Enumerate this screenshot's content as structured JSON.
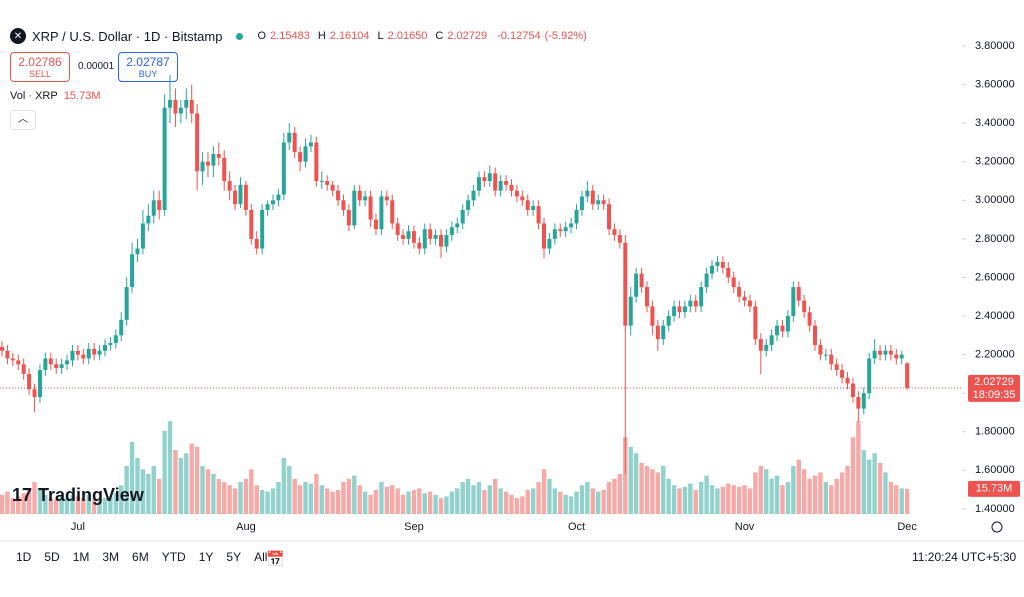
{
  "header": {
    "symbol": "XRP / U.S. Dollar · 1D · Bitstamp",
    "ohlc": [
      {
        "key": "O",
        "value": "2.15483"
      },
      {
        "key": "H",
        "value": "2.16104"
      },
      {
        "key": "L",
        "value": "2.01650"
      },
      {
        "key": "C",
        "value": "2.02729"
      }
    ],
    "change": "-0.12754",
    "change_pct": "(-5.92%)"
  },
  "trade": {
    "sell_price": "2.02786",
    "sell": "SELL",
    "spread": "0.00001",
    "buy_price": "2.02787",
    "buy": "BUY"
  },
  "volume_legend": {
    "label": "Vol · XRP",
    "value": "15.73M"
  },
  "logo": "TradingView",
  "toolbar": {
    "ranges": [
      "1D",
      "5D",
      "1M",
      "3M",
      "6M",
      "YTD",
      "1Y",
      "5Y",
      "All"
    ],
    "time": "11:20:24 UTC+5:30"
  },
  "chart_data": {
    "type": "candlestick",
    "up_color": "#26a69a",
    "down_color": "#ef5350",
    "grid": false,
    "categories": [
      null,
      null,
      null,
      null,
      null,
      null,
      null,
      null,
      null,
      null,
      null,
      null,
      null,
      null,
      "Jul",
      null,
      null,
      null,
      null,
      null,
      null,
      null,
      null,
      null,
      null,
      null,
      null,
      null,
      null,
      null,
      null,
      null,
      null,
      null,
      null,
      null,
      null,
      null,
      null,
      null,
      null,
      null,
      null,
      null,
      null,
      "Aug",
      null,
      null,
      null,
      null,
      null,
      null,
      null,
      null,
      null,
      null,
      null,
      null,
      null,
      null,
      null,
      null,
      null,
      null,
      null,
      null,
      null,
      null,
      null,
      null,
      null,
      null,
      null,
      null,
      null,
      null,
      "Sep",
      null,
      null,
      null,
      null,
      null,
      null,
      null,
      null,
      null,
      null,
      null,
      null,
      null,
      null,
      null,
      null,
      null,
      null,
      null,
      null,
      null,
      null,
      null,
      null,
      null,
      null,
      null,
      null,
      null,
      "Oct",
      null,
      null,
      null,
      null,
      null,
      null,
      null,
      null,
      null,
      null,
      null,
      null,
      null,
      null,
      null,
      null,
      null,
      null,
      null,
      null,
      null,
      null,
      null,
      null,
      null,
      null,
      null,
      null,
      null,
      null,
      "Nov",
      null,
      null,
      null,
      null,
      null,
      null,
      null,
      null,
      null,
      null,
      null,
      null,
      null,
      null,
      null,
      null,
      null,
      null,
      null,
      null,
      null,
      null,
      null,
      null,
      null,
      null,
      null,
      null,
      null,
      "Dec"
    ],
    "open": [
      2.24,
      2.22,
      2.18,
      2.17,
      2.15,
      2.1,
      2.02,
      1.98,
      2.12,
      2.18,
      2.15,
      2.13,
      2.15,
      2.17,
      2.22,
      2.2,
      2.18,
      2.23,
      2.2,
      2.22,
      2.25,
      2.26,
      2.3,
      2.38,
      2.55,
      2.72,
      2.75,
      2.88,
      2.92,
      3.0,
      2.95,
      3.48,
      3.52,
      3.45,
      3.48,
      3.52,
      3.45,
      3.15,
      3.2,
      3.18,
      3.24,
      3.22,
      3.1,
      3.05,
      2.98,
      3.08,
      2.95,
      2.8,
      2.75,
      2.95,
      2.98,
      3.0,
      3.03,
      3.3,
      3.35,
      3.25,
      3.2,
      3.28,
      3.3,
      3.1,
      3.1,
      3.08,
      3.05,
      3.0,
      2.95,
      2.87,
      3.05,
      3.0,
      3.02,
      2.9,
      2.85,
      3.02,
      3.0,
      2.88,
      2.82,
      2.8,
      2.84,
      2.78,
      2.75,
      2.85,
      2.8,
      2.82,
      2.76,
      2.82,
      2.86,
      2.88,
      2.95,
      3.0,
      3.05,
      3.12,
      3.1,
      3.14,
      3.05,
      3.1,
      3.08,
      3.05,
      3.02,
      3.0,
      2.95,
      2.97,
      2.88,
      2.75,
      2.8,
      2.85,
      2.84,
      2.86,
      2.88,
      2.95,
      3.02,
      3.05,
      2.98,
      3.0,
      2.98,
      2.85,
      2.82,
      2.78,
      2.35,
      2.5,
      2.62,
      2.55,
      2.45,
      2.35,
      2.28,
      2.35,
      2.4,
      2.45,
      2.42,
      2.45,
      2.48,
      2.45,
      2.55,
      2.62,
      2.66,
      2.68,
      2.65,
      2.6,
      2.55,
      2.5,
      2.48,
      2.45,
      2.28,
      2.22,
      2.25,
      2.3,
      2.35,
      2.32,
      2.4,
      2.55,
      2.48,
      2.42,
      2.35,
      2.25,
      2.2,
      2.2,
      2.15,
      2.12,
      2.08,
      2.05,
      1.98,
      1.92,
      2.0,
      2.18,
      2.22,
      2.2,
      2.22,
      2.2,
      2.18,
      2.15483
    ],
    "high": [
      2.27,
      2.25,
      2.21,
      2.2,
      2.18,
      2.13,
      2.05,
      2.15,
      2.21,
      2.21,
      2.18,
      2.18,
      2.2,
      2.25,
      2.25,
      2.23,
      2.26,
      2.26,
      2.25,
      2.28,
      2.29,
      2.33,
      2.42,
      2.6,
      2.78,
      2.8,
      2.95,
      2.98,
      3.05,
      3.05,
      3.55,
      3.65,
      3.58,
      3.52,
      3.58,
      3.6,
      3.5,
      3.25,
      3.25,
      3.28,
      3.3,
      3.26,
      3.15,
      3.08,
      3.12,
      3.1,
      2.98,
      2.84,
      2.98,
      3.0,
      3.03,
      3.06,
      3.35,
      3.4,
      3.38,
      3.28,
      3.32,
      3.34,
      3.33,
      3.15,
      3.13,
      3.1,
      3.08,
      3.03,
      2.98,
      3.08,
      3.08,
      3.05,
      3.05,
      2.93,
      3.05,
      3.05,
      3.03,
      2.91,
      2.85,
      2.87,
      2.87,
      2.81,
      2.88,
      2.88,
      2.85,
      2.85,
      2.85,
      2.89,
      2.91,
      2.98,
      3.03,
      3.08,
      3.15,
      3.15,
      3.18,
      3.17,
      3.13,
      3.13,
      3.11,
      3.08,
      3.05,
      3.03,
      3.0,
      3.0,
      2.91,
      2.83,
      2.88,
      2.88,
      2.89,
      2.91,
      2.98,
      3.05,
      3.1,
      3.08,
      3.03,
      3.03,
      3.01,
      2.88,
      2.85,
      2.82,
      2.55,
      2.65,
      2.65,
      2.58,
      2.48,
      2.38,
      2.38,
      2.43,
      2.48,
      2.48,
      2.48,
      2.51,
      2.51,
      2.58,
      2.65,
      2.69,
      2.71,
      2.71,
      2.68,
      2.63,
      2.58,
      2.53,
      2.51,
      2.48,
      2.31,
      2.28,
      2.33,
      2.38,
      2.38,
      2.43,
      2.58,
      2.58,
      2.51,
      2.45,
      2.38,
      2.28,
      2.23,
      2.23,
      2.18,
      2.15,
      2.11,
      2.08,
      2.01,
      2.03,
      2.21,
      2.28,
      2.25,
      2.25,
      2.25,
      2.23,
      2.22,
      2.16104
    ],
    "low": [
      2.19,
      2.15,
      2.14,
      2.12,
      2.07,
      1.99,
      1.9,
      1.95,
      2.09,
      2.12,
      2.1,
      2.1,
      2.12,
      2.14,
      2.17,
      2.15,
      2.15,
      2.17,
      2.17,
      2.19,
      2.22,
      2.23,
      2.27,
      2.35,
      2.52,
      2.68,
      2.72,
      2.84,
      2.88,
      2.9,
      2.92,
      3.4,
      3.38,
      3.4,
      3.42,
      3.4,
      3.05,
      3.08,
      3.12,
      3.12,
      3.18,
      3.05,
      3.0,
      2.95,
      2.96,
      2.92,
      2.77,
      2.72,
      2.72,
      2.92,
      2.95,
      2.97,
      3.0,
      3.26,
      3.22,
      3.15,
      3.17,
      3.25,
      3.07,
      3.06,
      3.05,
      3.02,
      2.97,
      2.92,
      2.84,
      2.85,
      2.97,
      2.97,
      2.86,
      2.82,
      2.82,
      2.97,
      2.85,
      2.79,
      2.77,
      2.77,
      2.75,
      2.72,
      2.72,
      2.77,
      2.77,
      2.7,
      2.73,
      2.79,
      2.83,
      2.85,
      2.92,
      2.97,
      3.02,
      3.07,
      3.07,
      3.02,
      3.02,
      3.05,
      3.02,
      2.99,
      2.97,
      2.92,
      2.92,
      2.85,
      2.7,
      2.72,
      2.77,
      2.81,
      2.81,
      2.83,
      2.85,
      2.92,
      2.99,
      2.95,
      2.95,
      2.95,
      2.82,
      2.79,
      2.75,
      1.58,
      2.3,
      2.47,
      2.52,
      2.42,
      2.3,
      2.22,
      2.25,
      2.32,
      2.37,
      2.39,
      2.39,
      2.42,
      2.42,
      2.42,
      2.52,
      2.59,
      2.63,
      2.62,
      2.57,
      2.52,
      2.47,
      2.45,
      2.42,
      2.25,
      2.1,
      2.19,
      2.22,
      2.27,
      2.29,
      2.29,
      2.37,
      2.45,
      2.39,
      2.32,
      2.22,
      2.17,
      2.17,
      2.12,
      2.09,
      2.05,
      2.02,
      1.95,
      1.85,
      1.89,
      1.97,
      2.15,
      2.17,
      2.17,
      2.17,
      2.15,
      2.15,
      2.0165
    ],
    "close": [
      2.22,
      2.18,
      2.17,
      2.15,
      2.1,
      2.02,
      1.98,
      2.12,
      2.18,
      2.15,
      2.13,
      2.15,
      2.17,
      2.22,
      2.2,
      2.18,
      2.23,
      2.2,
      2.22,
      2.25,
      2.26,
      2.3,
      2.38,
      2.55,
      2.72,
      2.75,
      2.88,
      2.92,
      3.0,
      2.95,
      3.48,
      3.52,
      3.45,
      3.48,
      3.52,
      3.45,
      3.15,
      3.2,
      3.18,
      3.24,
      3.22,
      3.1,
      3.05,
      2.98,
      3.08,
      2.95,
      2.8,
      2.75,
      2.95,
      2.98,
      3.0,
      3.03,
      3.3,
      3.35,
      3.25,
      3.2,
      3.28,
      3.3,
      3.1,
      3.1,
      3.08,
      3.05,
      3.0,
      2.95,
      2.87,
      3.05,
      3.0,
      3.02,
      2.9,
      2.85,
      3.02,
      3.0,
      2.88,
      2.82,
      2.8,
      2.84,
      2.78,
      2.75,
      2.85,
      2.8,
      2.82,
      2.76,
      2.82,
      2.86,
      2.88,
      2.95,
      3.0,
      3.05,
      3.12,
      3.1,
      3.14,
      3.05,
      3.1,
      3.08,
      3.05,
      3.02,
      3.0,
      2.95,
      2.97,
      2.88,
      2.75,
      2.8,
      2.85,
      2.84,
      2.86,
      2.88,
      2.95,
      3.02,
      3.05,
      2.98,
      3.0,
      2.98,
      2.85,
      2.82,
      2.78,
      2.35,
      2.5,
      2.62,
      2.55,
      2.45,
      2.35,
      2.28,
      2.35,
      2.4,
      2.45,
      2.42,
      2.45,
      2.48,
      2.45,
      2.55,
      2.62,
      2.66,
      2.68,
      2.65,
      2.6,
      2.55,
      2.5,
      2.48,
      2.45,
      2.28,
      2.22,
      2.25,
      2.3,
      2.35,
      2.32,
      2.4,
      2.55,
      2.48,
      2.42,
      2.35,
      2.25,
      2.2,
      2.2,
      2.15,
      2.12,
      2.08,
      2.05,
      1.98,
      1.92,
      2.0,
      2.18,
      2.22,
      2.2,
      2.22,
      2.2,
      2.18,
      2.2,
      2.02729
    ],
    "volume": [
      12,
      14,
      10,
      11,
      13,
      16,
      20,
      15,
      12,
      10,
      9,
      11,
      10,
      12,
      11,
      10,
      12,
      9,
      8,
      10,
      11,
      13,
      18,
      30,
      45,
      35,
      28,
      25,
      30,
      22,
      52,
      58,
      40,
      35,
      38,
      44,
      42,
      30,
      28,
      25,
      22,
      20,
      18,
      16,
      20,
      22,
      28,
      18,
      15,
      14,
      16,
      20,
      35,
      30,
      22,
      18,
      20,
      19,
      25,
      18,
      16,
      14,
      15,
      20,
      22,
      24,
      18,
      14,
      12,
      15,
      20,
      17,
      18,
      16,
      12,
      14,
      15,
      16,
      13,
      14,
      12,
      10,
      11,
      14,
      16,
      20,
      22,
      18,
      20,
      15,
      18,
      22,
      16,
      14,
      12,
      10,
      11,
      15,
      16,
      20,
      28,
      22,
      16,
      14,
      12,
      11,
      14,
      18,
      20,
      16,
      14,
      15,
      20,
      22,
      25,
      48,
      42,
      38,
      32,
      30,
      28,
      26,
      30,
      22,
      18,
      16,
      17,
      19,
      15,
      20,
      24,
      18,
      16,
      17,
      19,
      18,
      17,
      18,
      16,
      26,
      30,
      28,
      22,
      24,
      18,
      20,
      30,
      34,
      28,
      22,
      24,
      26,
      20,
      18,
      22,
      26,
      30,
      48,
      58,
      40,
      34,
      38,
      32,
      26,
      20,
      18,
      16,
      15.73
    ],
    "ylim": [
      1.358,
      3.883
    ],
    "yticks": [
      {
        "value": 1.4,
        "label": "1.40000"
      },
      {
        "value": 1.6,
        "label": "1.60000"
      },
      {
        "value": 1.8,
        "label": "1.80000"
      },
      {
        "value": 2.0,
        "label": "2.00000"
      },
      {
        "value": 2.2,
        "label": "2.20000"
      },
      {
        "value": 2.4,
        "label": "2.40000"
      },
      {
        "value": 2.6,
        "label": "2.60000"
      },
      {
        "value": 2.8,
        "label": "2.80000"
      },
      {
        "value": 3.0,
        "label": "3.00000"
      },
      {
        "value": 3.2,
        "label": "3.20000"
      },
      {
        "value": 3.4,
        "label": "3.40000"
      },
      {
        "value": 3.6,
        "label": "3.60000"
      },
      {
        "value": 3.8,
        "label": "3.80000"
      }
    ],
    "price_tag": {
      "price": "2.02729",
      "countdown": "18:09:35"
    },
    "volume_tag": "15.73M"
  }
}
